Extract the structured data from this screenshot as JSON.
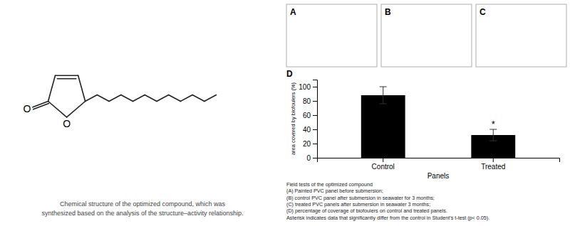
{
  "chart_data": {
    "type": "bar",
    "categories": [
      "Control",
      "Treated"
    ],
    "values": [
      88,
      32
    ],
    "errors": [
      12,
      8
    ],
    "color": "#000000",
    "xlabel": "Panels",
    "ylabel": "area covered by biofoulers (%)",
    "ylim": [
      0,
      110
    ],
    "yticks": [
      0,
      20,
      40,
      60,
      80,
      100
    ],
    "annotations": [
      "*",
      "A",
      "B",
      "C",
      "D",
      "O",
      "O",
      "Chemical structure of the optimized compound, which was",
      "synthesized based on the analysis of the structure–activity relationship.",
      "Field tests of the optimized compound",
      "(A) Painted PVC panel before submersion;",
      "(B) control PVC panel after submersion in seawater for 3 months;",
      "(C) treated PVC panels after submersion in seawater 3 months;",
      "(D) percentage of coverage of biofoulers on control and treated panels.",
      "Asterisk indicates data that significantly differ from the control in Student’s t-test (p< 0.05)."
    ]
  }
}
